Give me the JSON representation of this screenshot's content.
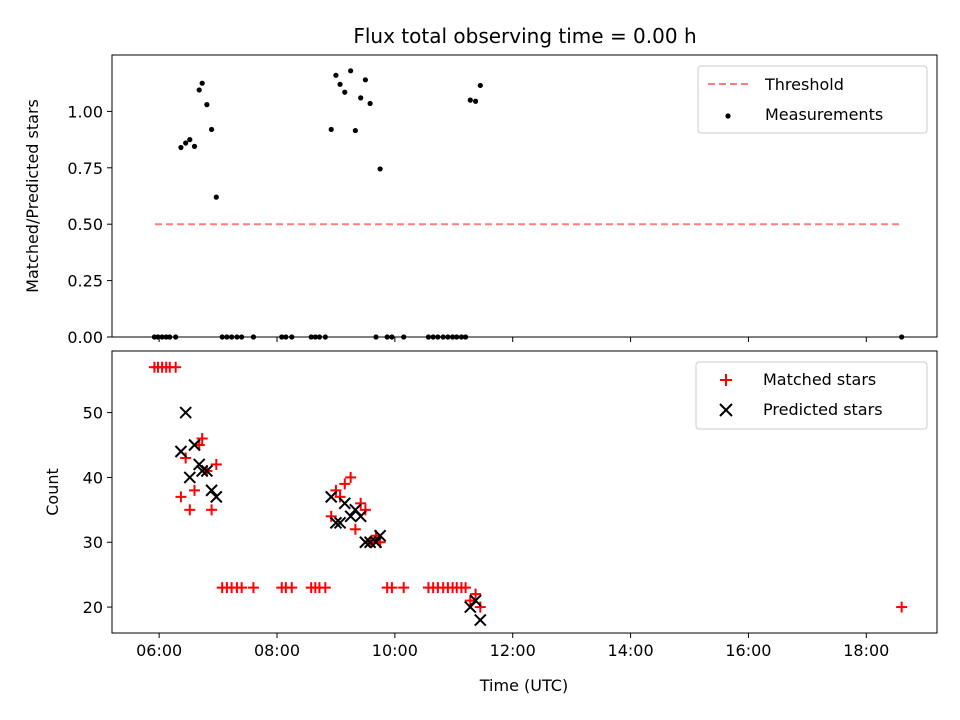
{
  "chart_data": {
    "type": "scatter",
    "title": "Flux total observing time = 0.00 h",
    "xlabel": "Time (UTC)",
    "x_unit": "hours UTC",
    "xlim": [
      5.2,
      19.2
    ],
    "xticks": [
      6,
      8,
      10,
      12,
      14,
      16,
      18
    ],
    "xtick_labels": [
      "06:00",
      "08:00",
      "10:00",
      "12:00",
      "14:00",
      "16:00",
      "18:00"
    ],
    "panels": [
      {
        "ylabel": "Matched/Predicted stars",
        "ylim": [
          0,
          1.25
        ],
        "yticks": [
          0,
          0.25,
          0.5,
          0.75,
          1.0
        ],
        "ytick_labels": [
          "0.00",
          "0.25",
          "0.50",
          "0.75",
          "1.00"
        ],
        "legend_position": "top-right",
        "lines": [
          {
            "name": "Threshold",
            "color": "#ff7f7f",
            "dash": true,
            "x": [
              5.93,
              18.6
            ],
            "y": [
              0.5,
              0.5
            ]
          }
        ],
        "series": [
          {
            "name": "Measurements",
            "marker": "dot",
            "color": "#000000",
            "x": [
              5.92,
              5.98,
              6.05,
              6.12,
              6.18,
              6.28,
              6.37,
              6.45,
              6.52,
              6.6,
              6.68,
              6.73,
              6.81,
              6.89,
              6.97,
              7.07,
              7.15,
              7.23,
              7.32,
              7.4,
              7.6,
              8.08,
              8.15,
              8.25,
              8.58,
              8.65,
              8.72,
              8.82,
              8.92,
              9.0,
              9.07,
              9.15,
              9.25,
              9.33,
              9.42,
              9.5,
              9.58,
              9.68,
              9.75,
              9.87,
              9.95,
              10.15,
              10.57,
              10.65,
              10.73,
              10.82,
              10.9,
              10.98,
              11.05,
              11.13,
              11.2,
              11.28,
              11.37,
              11.45,
              18.6
            ],
            "y": [
              0,
              0,
              0,
              0,
              0,
              0,
              0.84,
              0.86,
              0.875,
              0.845,
              1.095,
              1.125,
              1.03,
              0.92,
              0.62,
              0,
              0,
              0,
              0,
              0,
              0,
              0,
              0,
              0,
              0,
              0,
              0,
              0,
              0.92,
              1.16,
              1.12,
              1.085,
              1.18,
              0.915,
              1.06,
              1.14,
              1.035,
              0,
              0.745,
              0,
              0,
              0,
              0,
              0,
              0,
              0,
              0,
              0,
              0,
              0,
              0,
              1.05,
              1.045,
              1.115,
              0
            ]
          }
        ]
      },
      {
        "ylabel": "Count",
        "ylim": [
          16,
          59.5
        ],
        "yticks": [
          20,
          30,
          40,
          50
        ],
        "ytick_labels": [
          "20",
          "30",
          "40",
          "50"
        ],
        "legend_position": "top-right",
        "series": [
          {
            "name": "Matched stars",
            "marker": "plus",
            "color": "#ff0000",
            "x": [
              5.92,
              5.98,
              6.05,
              6.12,
              6.18,
              6.28,
              6.37,
              6.45,
              6.52,
              6.6,
              6.68,
              6.73,
              6.81,
              6.89,
              6.97,
              7.07,
              7.15,
              7.23,
              7.32,
              7.4,
              7.6,
              8.08,
              8.15,
              8.25,
              8.58,
              8.65,
              8.72,
              8.82,
              8.92,
              9.0,
              9.07,
              9.15,
              9.25,
              9.33,
              9.42,
              9.5,
              9.58,
              9.68,
              9.75,
              9.87,
              9.95,
              10.15,
              10.57,
              10.65,
              10.73,
              10.82,
              10.9,
              10.98,
              11.05,
              11.13,
              11.2,
              11.28,
              11.37,
              11.45,
              18.6
            ],
            "y": [
              57,
              57,
              57,
              57,
              57,
              57,
              37,
              43,
              35,
              38,
              45,
              46,
              41,
              35,
              42,
              23,
              23,
              23,
              23,
              23,
              23,
              23,
              23,
              23,
              23,
              23,
              23,
              23,
              34,
              38,
              37,
              39,
              40,
              32,
              36,
              35,
              30,
              31,
              30,
              23,
              23,
              23,
              23,
              23,
              23,
              23,
              23,
              23,
              23,
              23,
              23,
              21,
              22,
              20,
              20
            ]
          },
          {
            "name": "Predicted stars",
            "marker": "x",
            "color": "#000000",
            "x": [
              6.37,
              6.45,
              6.52,
              6.6,
              6.68,
              6.73,
              6.81,
              6.89,
              6.97,
              8.92,
              9.0,
              9.07,
              9.15,
              9.25,
              9.33,
              9.42,
              9.5,
              9.58,
              9.68,
              9.75,
              11.28,
              11.37,
              11.45
            ],
            "y": [
              44,
              50,
              40,
              45,
              42,
              41,
              41,
              38,
              37,
              37,
              33,
              33,
              36,
              34,
              35,
              34,
              30,
              30,
              30,
              31,
              20,
              21,
              18
            ]
          }
        ]
      }
    ]
  }
}
